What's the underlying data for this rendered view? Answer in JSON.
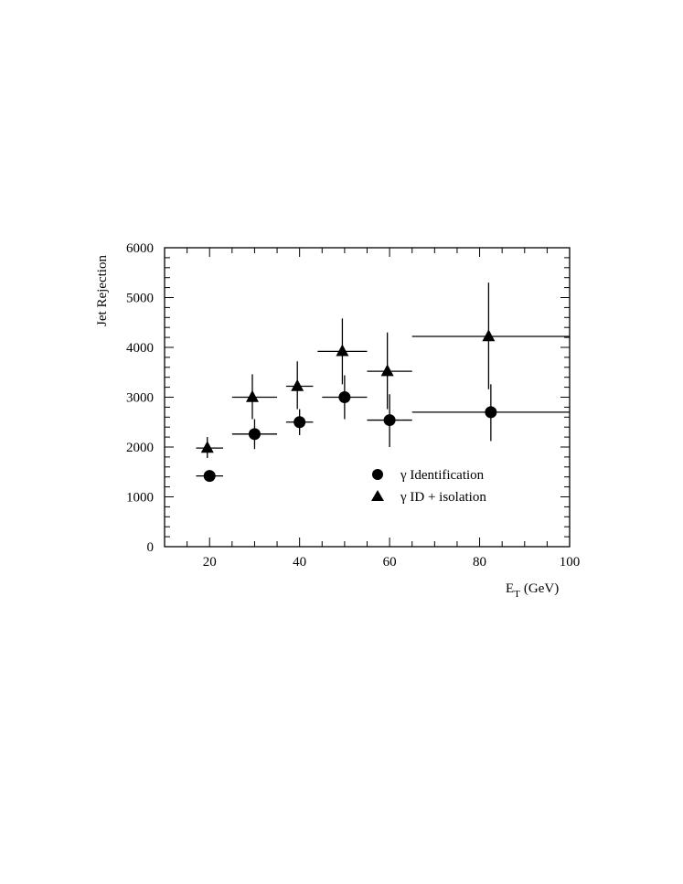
{
  "chart_data": {
    "type": "scatter",
    "title": "",
    "xlabel": "E",
    "xlabel_sub": "T",
    "xlabel_unit": "(GeV)",
    "ylabel": "Jet Rejection",
    "xlim": [
      10,
      100
    ],
    "ylim": [
      0,
      6000
    ],
    "x_ticks": [
      20,
      40,
      60,
      80,
      100
    ],
    "x_tick_labels": [
      "20",
      "40",
      "60",
      "80",
      "100"
    ],
    "y_ticks": [
      0,
      1000,
      2000,
      3000,
      4000,
      5000,
      6000
    ],
    "y_tick_labels": [
      "0",
      "1000",
      "2000",
      "3000",
      "4000",
      "5000",
      "6000"
    ],
    "x_minor_step": 5,
    "y_minor_step": 200,
    "grid": false,
    "legend_position": "bottom-right",
    "series": [
      {
        "name": "γ Identification",
        "marker": "circle",
        "points": [
          {
            "x": 20,
            "y": 1420,
            "xlo": 17,
            "xhi": 23,
            "ylo": 1420,
            "yhi": 1420
          },
          {
            "x": 30,
            "y": 2260,
            "xlo": 25,
            "xhi": 35,
            "ylo": 1960,
            "yhi": 2560
          },
          {
            "x": 40,
            "y": 2500,
            "xlo": 37,
            "xhi": 43,
            "ylo": 2240,
            "yhi": 2760
          },
          {
            "x": 50,
            "y": 3000,
            "xlo": 45,
            "xhi": 55,
            "ylo": 2560,
            "yhi": 3440
          },
          {
            "x": 60,
            "y": 2540,
            "xlo": 55,
            "xhi": 65,
            "ylo": 2000,
            "yhi": 3060
          },
          {
            "x": 82.5,
            "y": 2700,
            "xlo": 65,
            "xhi": 100,
            "ylo": 2120,
            "yhi": 3260
          }
        ]
      },
      {
        "name": "γ ID + isolation",
        "marker": "triangle",
        "points": [
          {
            "x": 19.5,
            "y": 1980,
            "xlo": 17,
            "xhi": 23,
            "ylo": 1780,
            "yhi": 2200
          },
          {
            "x": 29.5,
            "y": 3000,
            "xlo": 25,
            "xhi": 35,
            "ylo": 2560,
            "yhi": 3460
          },
          {
            "x": 39.5,
            "y": 3220,
            "xlo": 37,
            "xhi": 43,
            "ylo": 2760,
            "yhi": 3720
          },
          {
            "x": 49.5,
            "y": 3920,
            "xlo": 44,
            "xhi": 55,
            "ylo": 3260,
            "yhi": 4580
          },
          {
            "x": 59.5,
            "y": 3520,
            "xlo": 55,
            "xhi": 65,
            "ylo": 2760,
            "yhi": 4300
          },
          {
            "x": 82,
            "y": 4220,
            "xlo": 65,
            "xhi": 100,
            "ylo": 3160,
            "yhi": 5300
          }
        ]
      }
    ]
  }
}
